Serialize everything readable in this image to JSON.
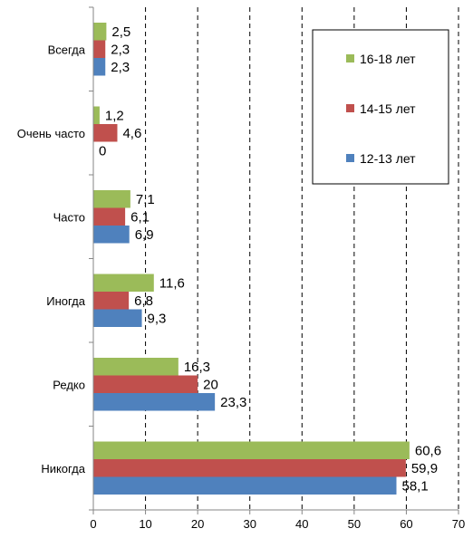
{
  "chart_data": {
    "type": "bar",
    "orientation": "horizontal",
    "categories": [
      "Всегда",
      "Очень часто",
      "Часто",
      "Иногда",
      "Редко",
      "Никогда"
    ],
    "series": [
      {
        "name": "16-18 лет",
        "color": "#9bbb59",
        "values": [
          2.5,
          1.2,
          7.1,
          11.6,
          16.3,
          60.6
        ],
        "labels": [
          "2,5",
          "1,2",
          "7,1",
          "11,6",
          "16,3",
          "60,6"
        ]
      },
      {
        "name": "14-15 лет",
        "color": "#c0504d",
        "values": [
          2.3,
          4.6,
          6.1,
          6.8,
          20,
          59.9
        ],
        "labels": [
          "2,3",
          "4,6",
          "6,1",
          "6,8",
          "20",
          "59,9"
        ]
      },
      {
        "name": "12-13 лет",
        "color": "#4f81bd",
        "values": [
          2.3,
          0,
          6.9,
          9.3,
          23.3,
          58.1
        ],
        "labels": [
          "2,3",
          "0",
          "6,9",
          "9,3",
          "23,3",
          "58,1"
        ]
      }
    ],
    "xlim": [
      0,
      70
    ],
    "xticks": [
      0,
      10,
      20,
      30,
      40,
      50,
      60,
      70
    ],
    "grid": "vertical dashed",
    "legend_position": "top-right"
  }
}
